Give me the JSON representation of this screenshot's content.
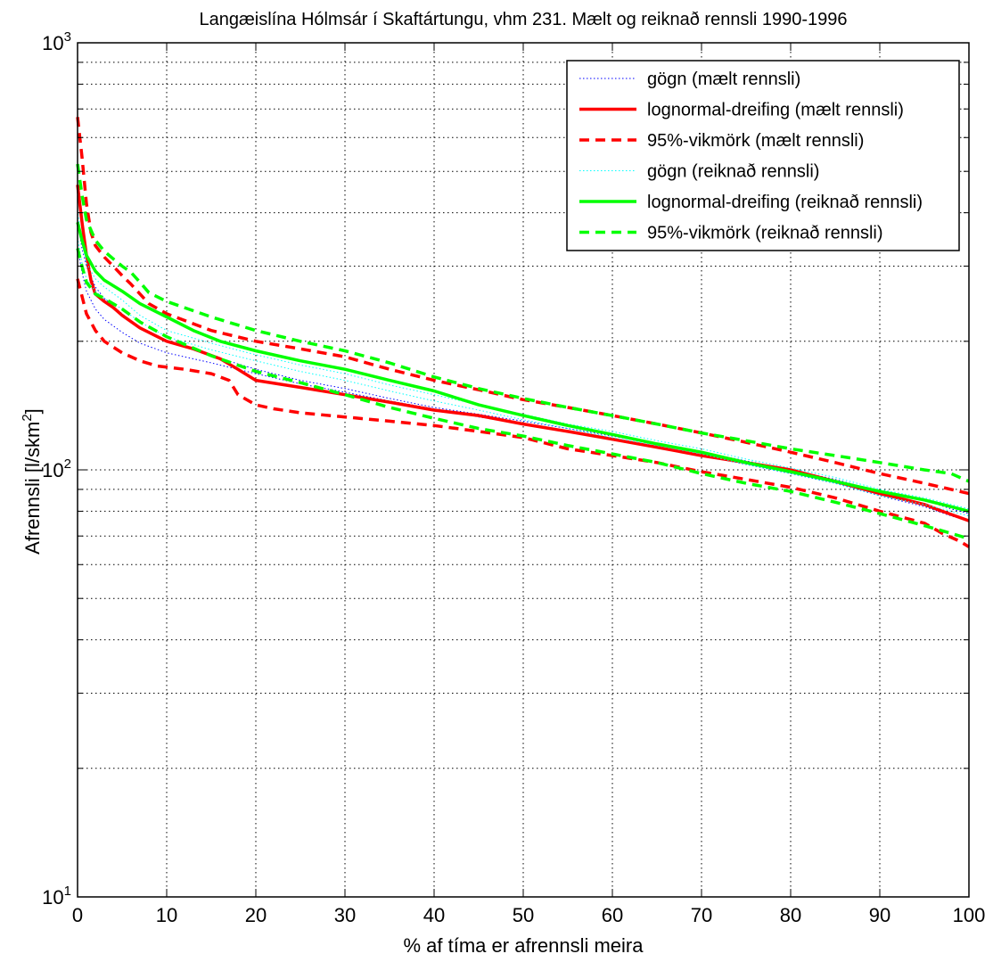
{
  "chart_data": {
    "type": "line",
    "title": "Langæislína Hólmsár í Skaftártungu, vhm 231. Mælt og reiknað rennsli 1990-1996",
    "xlabel": "% af tíma er afrennsli meira",
    "ylabel": "Afrennsli [l/skm",
    "ylabel_sup": "2",
    "ylabel_close": "]",
    "xlim": [
      0,
      100
    ],
    "ylim": [
      10,
      1000
    ],
    "yscale": "log",
    "grid": true,
    "legend_position": "top-right",
    "x_ticks": [
      "0",
      "10",
      "20",
      "30",
      "40",
      "50",
      "60",
      "70",
      "80",
      "90",
      "100"
    ],
    "y_ticks": [
      {
        "value": 10,
        "base": "10",
        "exp": "1"
      },
      {
        "value": 100,
        "base": "10",
        "exp": "2"
      },
      {
        "value": 1000,
        "base": "10",
        "exp": "3"
      }
    ],
    "colors": {
      "measured": "#ff0000",
      "measured_data": "#0000ff",
      "calculated": "#00ff00",
      "calculated_data": "#00ffff"
    },
    "series": [
      {
        "name": "gögn (mælt rennsli)",
        "color": "#0000ff",
        "style": "dotted",
        "width": 1,
        "points": [
          [
            0,
            380
          ],
          [
            0.5,
            330
          ],
          [
            1,
            300
          ],
          [
            2,
            268
          ],
          [
            3,
            252
          ],
          [
            5,
            232
          ],
          [
            7,
            215
          ],
          [
            10,
            200
          ],
          [
            15,
            185
          ],
          [
            20,
            172
          ],
          [
            25,
            162
          ],
          [
            30,
            155
          ],
          [
            35,
            147
          ],
          [
            40,
            140
          ],
          [
            45,
            135
          ],
          [
            50,
            130
          ],
          [
            55,
            125
          ],
          [
            60,
            120
          ],
          [
            65,
            115
          ],
          [
            70,
            110
          ],
          [
            75,
            105
          ],
          [
            80,
            100
          ],
          [
            85,
            95
          ],
          [
            90,
            89
          ],
          [
            95,
            85
          ],
          [
            98,
            81
          ],
          [
            100,
            79
          ]
        ]
      },
      {
        "name": "",
        "color": "#0000ff",
        "style": "dotted",
        "width": 1,
        "points": [
          [
            0,
            330
          ],
          [
            0.5,
            290
          ],
          [
            1,
            262
          ],
          [
            2,
            238
          ],
          [
            3,
            225
          ],
          [
            5,
            210
          ],
          [
            7,
            198
          ],
          [
            10,
            188
          ],
          [
            15,
            178
          ],
          [
            20,
            168
          ],
          [
            25,
            159
          ],
          [
            30,
            152
          ],
          [
            35,
            145
          ],
          [
            40,
            139
          ],
          [
            45,
            133
          ],
          [
            50,
            128
          ],
          [
            55,
            123
          ],
          [
            60,
            118
          ],
          [
            65,
            113
          ],
          [
            70,
            108
          ],
          [
            75,
            103
          ],
          [
            80,
            98
          ],
          [
            85,
            93
          ],
          [
            90,
            87
          ],
          [
            95,
            82
          ],
          [
            98,
            78
          ],
          [
            100,
            76
          ]
        ]
      },
      {
        "name": "lognormal-dreifing (mælt rennsli)",
        "color": "#ff0000",
        "style": "solid",
        "width": 3.5,
        "points": [
          [
            0,
            465
          ],
          [
            0.5,
            380
          ],
          [
            1,
            318
          ],
          [
            1.5,
            278
          ],
          [
            2,
            258
          ],
          [
            3,
            248
          ],
          [
            4,
            240
          ],
          [
            5,
            230
          ],
          [
            7,
            215
          ],
          [
            10,
            200
          ],
          [
            13,
            192
          ],
          [
            16,
            182
          ],
          [
            18,
            172
          ],
          [
            20,
            162
          ],
          [
            25,
            156
          ],
          [
            30,
            150
          ],
          [
            35,
            144
          ],
          [
            40,
            138
          ],
          [
            45,
            134
          ],
          [
            50,
            128
          ],
          [
            55,
            123
          ],
          [
            60,
            118
          ],
          [
            65,
            113
          ],
          [
            70,
            108
          ],
          [
            75,
            104
          ],
          [
            80,
            100
          ],
          [
            85,
            94
          ],
          [
            90,
            88
          ],
          [
            93,
            85
          ],
          [
            95,
            83
          ],
          [
            97,
            80
          ],
          [
            100,
            76
          ]
        ]
      },
      {
        "name": "95%-vikmörk (mælt rennsli)",
        "color": "#ff0000",
        "style": "dashed",
        "width": 3.5,
        "points": [
          [
            0,
            670
          ],
          [
            0.5,
            540
          ],
          [
            1,
            420
          ],
          [
            1.5,
            360
          ],
          [
            2,
            335
          ],
          [
            3,
            315
          ],
          [
            4,
            300
          ],
          [
            5,
            285
          ],
          [
            6,
            272
          ],
          [
            8,
            245
          ],
          [
            10,
            232
          ],
          [
            15,
            212
          ],
          [
            20,
            200
          ],
          [
            25,
            192
          ],
          [
            30,
            184
          ],
          [
            35,
            172
          ],
          [
            40,
            162
          ],
          [
            45,
            154
          ],
          [
            50,
            146
          ],
          [
            55,
            140
          ],
          [
            60,
            134
          ],
          [
            65,
            128
          ],
          [
            70,
            122
          ],
          [
            75,
            116
          ],
          [
            80,
            110
          ],
          [
            85,
            104
          ],
          [
            90,
            98
          ],
          [
            93,
            95
          ],
          [
            95,
            93
          ],
          [
            97,
            91
          ],
          [
            100,
            88
          ]
        ]
      },
      {
        "name": "",
        "color": "#ff0000",
        "style": "dashed",
        "width": 3.5,
        "points": [
          [
            0,
            280
          ],
          [
            0.5,
            255
          ],
          [
            1,
            232
          ],
          [
            2,
            212
          ],
          [
            3,
            200
          ],
          [
            5,
            188
          ],
          [
            7,
            180
          ],
          [
            9,
            175
          ],
          [
            12,
            172
          ],
          [
            15,
            168
          ],
          [
            16,
            165
          ],
          [
            17,
            162
          ],
          [
            18,
            150
          ],
          [
            20,
            142
          ],
          [
            22,
            139
          ],
          [
            25,
            136
          ],
          [
            30,
            133
          ],
          [
            35,
            130
          ],
          [
            40,
            127
          ],
          [
            45,
            123
          ],
          [
            50,
            119
          ],
          [
            55,
            112
          ],
          [
            60,
            108
          ],
          [
            65,
            104
          ],
          [
            70,
            99
          ],
          [
            75,
            95
          ],
          [
            80,
            91
          ],
          [
            85,
            86
          ],
          [
            90,
            80
          ],
          [
            93,
            77
          ],
          [
            95,
            75
          ],
          [
            97,
            71
          ],
          [
            99,
            68
          ],
          [
            100,
            66
          ]
        ]
      },
      {
        "name": "gögn (reiknað rennsli)",
        "color": "#00ffff",
        "style": "dotted",
        "width": 1,
        "points": [
          [
            0,
            405
          ],
          [
            0.5,
            340
          ],
          [
            1,
            305
          ],
          [
            2,
            280
          ],
          [
            3,
            268
          ],
          [
            5,
            250
          ],
          [
            7,
            230
          ],
          [
            10,
            212
          ],
          [
            15,
            198
          ],
          [
            20,
            186
          ],
          [
            25,
            176
          ],
          [
            30,
            168
          ],
          [
            35,
            158
          ],
          [
            40,
            150
          ],
          [
            45,
            142
          ],
          [
            50,
            135
          ],
          [
            55,
            128
          ],
          [
            60,
            123
          ],
          [
            65,
            117
          ],
          [
            70,
            112
          ],
          [
            75,
            106
          ],
          [
            80,
            101
          ],
          [
            85,
            96
          ],
          [
            90,
            90
          ],
          [
            95,
            86
          ],
          [
            98,
            83
          ],
          [
            100,
            81
          ]
        ]
      },
      {
        "name": "",
        "color": "#00ffff",
        "style": "dotted",
        "width": 1,
        "points": [
          [
            0,
            350
          ],
          [
            0.5,
            305
          ],
          [
            1,
            280
          ],
          [
            2,
            262
          ],
          [
            3,
            252
          ],
          [
            5,
            238
          ],
          [
            7,
            222
          ],
          [
            10,
            205
          ],
          [
            15,
            191
          ],
          [
            20,
            180
          ],
          [
            25,
            170
          ],
          [
            30,
            162
          ],
          [
            35,
            153
          ],
          [
            40,
            145
          ],
          [
            45,
            138
          ],
          [
            50,
            131
          ],
          [
            55,
            125
          ],
          [
            60,
            119
          ],
          [
            65,
            114
          ],
          [
            70,
            109
          ],
          [
            75,
            103
          ],
          [
            80,
            98
          ],
          [
            85,
            93
          ],
          [
            90,
            87
          ],
          [
            95,
            83
          ],
          [
            98,
            80
          ],
          [
            100,
            78
          ]
        ]
      },
      {
        "name": "lognormal-dreifing (reiknað rennsli)",
        "color": "#00ff00",
        "style": "solid",
        "width": 3.5,
        "points": [
          [
            0,
            380
          ],
          [
            0.5,
            345
          ],
          [
            1,
            318
          ],
          [
            2,
            292
          ],
          [
            3,
            278
          ],
          [
            5,
            262
          ],
          [
            7,
            245
          ],
          [
            10,
            228
          ],
          [
            13,
            212
          ],
          [
            16,
            200
          ],
          [
            20,
            190
          ],
          [
            25,
            180
          ],
          [
            30,
            172
          ],
          [
            35,
            162
          ],
          [
            40,
            153
          ],
          [
            45,
            142
          ],
          [
            50,
            134
          ],
          [
            55,
            127
          ],
          [
            60,
            121
          ],
          [
            65,
            115
          ],
          [
            70,
            110
          ],
          [
            75,
            104
          ],
          [
            80,
            99
          ],
          [
            85,
            94
          ],
          [
            90,
            89
          ],
          [
            95,
            85
          ],
          [
            98,
            82
          ],
          [
            100,
            80
          ]
        ]
      },
      {
        "name": "95%-vikmörk (reiknað rennsli)",
        "color": "#00ff00",
        "style": "dashed",
        "width": 3.5,
        "points": [
          [
            0,
            520
          ],
          [
            0.5,
            440
          ],
          [
            1,
            385
          ],
          [
            2,
            345
          ],
          [
            3,
            325
          ],
          [
            4,
            312
          ],
          [
            5,
            300
          ],
          [
            6,
            290
          ],
          [
            7,
            275
          ],
          [
            8,
            260
          ],
          [
            10,
            248
          ],
          [
            15,
            228
          ],
          [
            20,
            212
          ],
          [
            25,
            200
          ],
          [
            30,
            190
          ],
          [
            35,
            178
          ],
          [
            40,
            165
          ],
          [
            45,
            155
          ],
          [
            50,
            147
          ],
          [
            55,
            140
          ],
          [
            60,
            134
          ],
          [
            65,
            128
          ],
          [
            70,
            122
          ],
          [
            75,
            117
          ],
          [
            80,
            112
          ],
          [
            85,
            108
          ],
          [
            90,
            104
          ],
          [
            95,
            100
          ],
          [
            98,
            98
          ],
          [
            100,
            94
          ]
        ]
      },
      {
        "name": "",
        "color": "#00ff00",
        "style": "dashed",
        "width": 3.5,
        "points": [
          [
            0,
            330
          ],
          [
            0.5,
            300
          ],
          [
            1,
            275
          ],
          [
            2,
            258
          ],
          [
            3,
            252
          ],
          [
            5,
            238
          ],
          [
            7,
            222
          ],
          [
            10,
            205
          ],
          [
            15,
            185
          ],
          [
            20,
            170
          ],
          [
            25,
            160
          ],
          [
            30,
            150
          ],
          [
            35,
            140
          ],
          [
            40,
            132
          ],
          [
            45,
            125
          ],
          [
            50,
            120
          ],
          [
            55,
            114
          ],
          [
            60,
            109
          ],
          [
            65,
            104
          ],
          [
            70,
            98
          ],
          [
            75,
            93
          ],
          [
            80,
            89
          ],
          [
            85,
            84
          ],
          [
            90,
            79
          ],
          [
            95,
            74
          ],
          [
            98,
            71
          ],
          [
            100,
            69
          ]
        ]
      }
    ]
  }
}
